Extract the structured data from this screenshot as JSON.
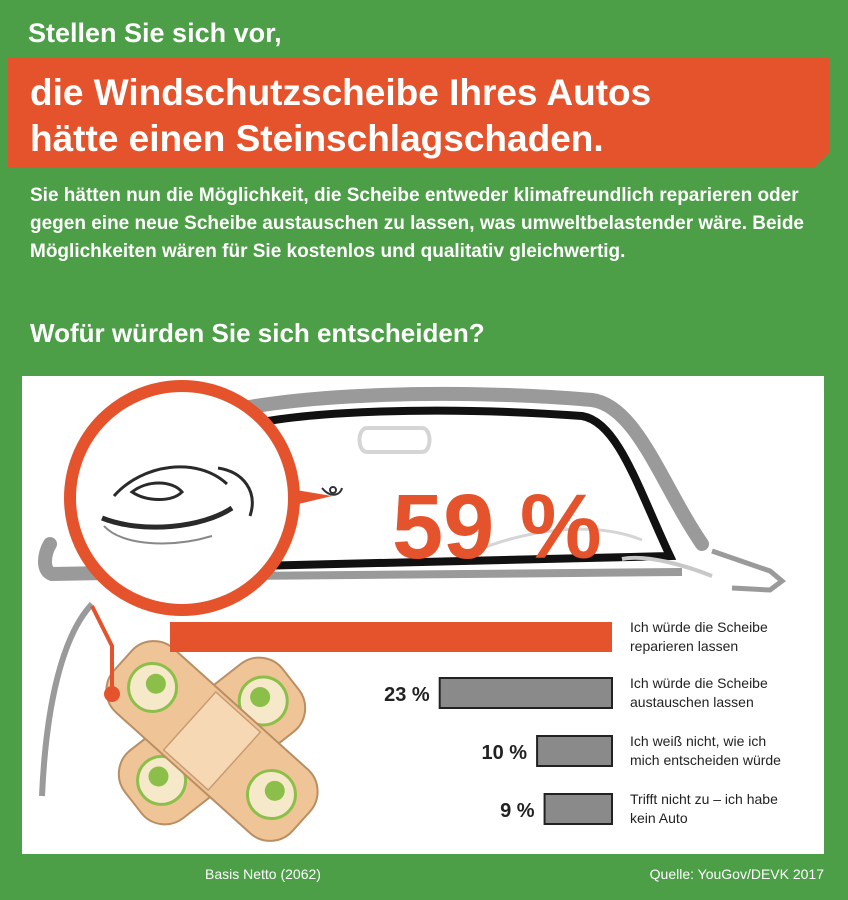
{
  "header": {
    "intro": "Stellen Sie sich vor,",
    "headline_line1": "die Windschutzscheibe Ihres Autos",
    "headline_line2": "hätte einen Steinschlagschaden.",
    "description": "Sie hätten nun die Möglichkeit, die Scheibe entweder klimafreundlich reparieren oder gegen eine neue Scheibe austauschen zu lassen, was umweltbelastender wäre. Beide Möglichkeiten wären für Sie kostenlos und qualitativ gleichwertig.",
    "question": "Wofür würden Sie sich entscheiden?"
  },
  "colors": {
    "background": "#4c9e47",
    "accent": "#e4532c",
    "bar_gray": "#8a8a8a",
    "plaster": "#efc497"
  },
  "chart_data": {
    "type": "bar",
    "orientation": "horizontal",
    "categories": [
      "Ich würde die Scheibe reparieren lassen",
      "Ich würde die Scheibe austauschen lassen",
      "Ich weiß nicht, wie ich mich entscheiden würde",
      "Trifft nicht zu – ich habe kein Auto"
    ],
    "label_lines": [
      [
        "Ich würde die Scheibe",
        "reparieren lassen"
      ],
      [
        "Ich würde die Scheibe",
        "austauschen lassen"
      ],
      [
        "Ich weiß nicht, wie ich",
        "mich entscheiden würde"
      ],
      [
        "Trifft nicht zu – ich habe",
        "kein Auto"
      ]
    ],
    "values": [
      59,
      23,
      10,
      9
    ],
    "value_labels": [
      "59 %",
      "23 %",
      "10 %",
      "9 %"
    ],
    "highlight_index": 0,
    "unit": "%",
    "xlim": [
      0,
      59
    ]
  },
  "footer": {
    "base": "Basis Netto (2062)",
    "source": "Quelle: YouGov/DEVK 2017"
  }
}
